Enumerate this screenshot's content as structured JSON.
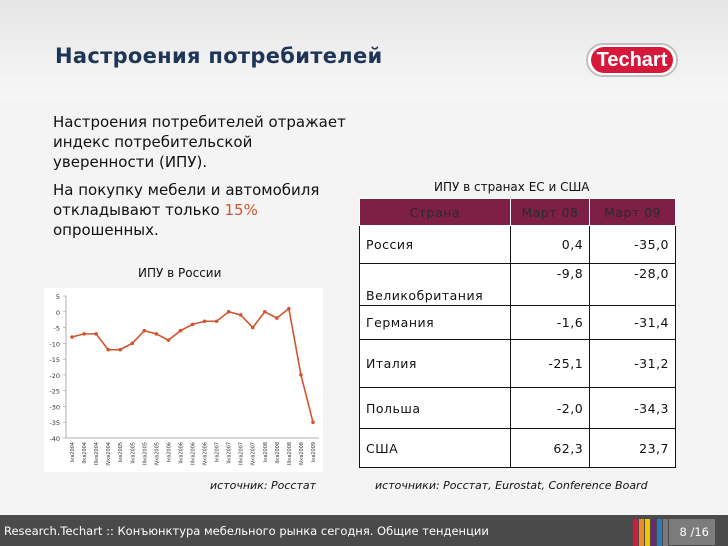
{
  "slide": {
    "title": "Настроения потребителей",
    "logo_text": "Techart"
  },
  "bullets": [
    {
      "text": "Настроения потребителей отражает индекс потребительской уверенности (ИПУ)."
    },
    {
      "text_before": "На покупку мебели и автомобиля откладывают только ",
      "highlight": "15%",
      "text_after": " опрошенных."
    }
  ],
  "chart_data": {
    "type": "line",
    "title": "ИПУ в России",
    "categories": [
      "Iкв2004",
      "IIкв2004",
      "IIIкв2004",
      "IVкв2004",
      "Iкв2005",
      "IIкв2005",
      "IIIкв2005",
      "IVкв2005",
      "Iкв2006",
      "IIкв2006",
      "IIIкв2006",
      "IVкв2006",
      "Iкв2007",
      "IIкв2007",
      "IIIкв2007",
      "IVкв2007",
      "Iкв2008",
      "IIкв2008",
      "IIIкв2008",
      "IVкв2008",
      "Iкв2009"
    ],
    "series": [
      {
        "name": "ИПУ",
        "values": [
          -8,
          -7,
          -7,
          -12,
          -12,
          -10,
          -6,
          -7,
          -9,
          -6,
          -4,
          -3,
          -3,
          0,
          -1,
          -5,
          0,
          -2,
          1,
          -20,
          -35
        ]
      }
    ],
    "ylim": [
      -40,
      5
    ],
    "yticks": [
      5,
      0,
      -5,
      -10,
      -15,
      -20,
      -25,
      -30,
      -35,
      -40
    ],
    "line_color": "#d2542c",
    "source": "источник: Росстат"
  },
  "table": {
    "title": "ИПУ в странах ЕС и США",
    "headers": [
      "Страна",
      "Март 08",
      "Март 09"
    ],
    "rows": [
      {
        "country": "Россия",
        "mar08": "0,4",
        "mar09": "-35,0"
      },
      {
        "country": "Великобритания",
        "mar08": "-9,8",
        "mar09": "-28,0"
      },
      {
        "country": "Германия",
        "mar08": "-1,6",
        "mar09": "-31,4"
      },
      {
        "country": "Италия",
        "mar08": "-25,1",
        "mar09": "-31,2"
      },
      {
        "country": "Польша",
        "mar08": "-2,0",
        "mar09": "-34,3"
      },
      {
        "country": "США",
        "mar08": "62,3",
        "mar09": "23,7"
      }
    ],
    "source": "источники: Росстат, Eurostat, Conference Board"
  },
  "footer": {
    "text": "Research.Techart :: Конъюнктура мебельного рынка сегодня. Общие тенденции",
    "page": "8 /16"
  },
  "colors": {
    "accent": "#d2542c",
    "title": "#1d3557",
    "header_bg": "#7d1f46",
    "stripes": [
      "#d6193a",
      "#f08a24",
      "#f5c400",
      "#6a2b6e",
      "#2b7bb9",
      "#7a7a7a"
    ]
  }
}
